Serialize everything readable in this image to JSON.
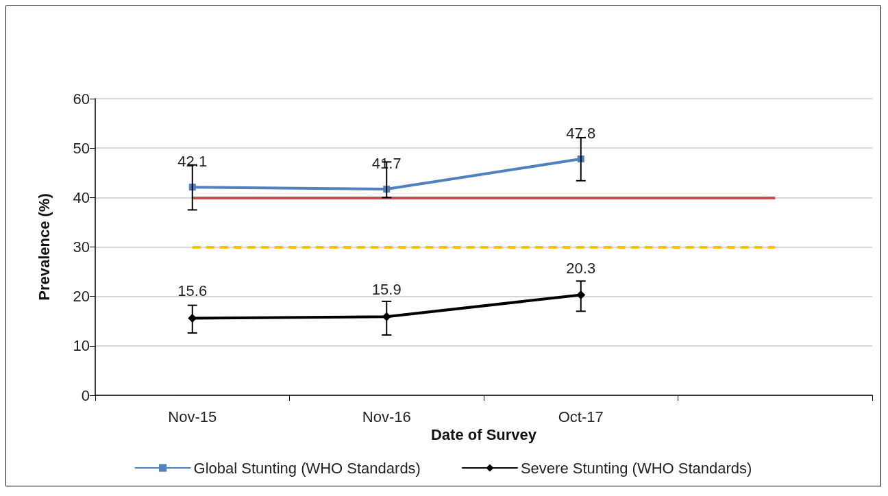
{
  "chart_data": {
    "type": "line",
    "xlabel": "Date of Survey",
    "ylabel": "Prevalence (%)",
    "categories": [
      "Nov-15",
      "Nov-16",
      "Oct-17",
      null
    ],
    "series": [
      {
        "name": "Global Stunting (WHO Standards)",
        "color": "#4f81bd",
        "marker": "square",
        "values": [
          42.1,
          41.7,
          47.8,
          null
        ],
        "errors": [
          [
            37.5,
            46.6
          ],
          [
            40.0,
            47.2
          ],
          [
            43.4,
            52.1
          ],
          null
        ]
      },
      {
        "name": "Severe Stunting (WHO Standards)",
        "color": "#000000",
        "marker": "diamond",
        "values": [
          15.6,
          15.9,
          20.3,
          null
        ],
        "errors": [
          [
            12.6,
            18.2
          ],
          [
            12.2,
            19.0
          ],
          [
            17.0,
            23.1
          ],
          null
        ]
      }
    ],
    "ref_lines": [
      {
        "axis": "y",
        "value": 40,
        "color": "#c0504d",
        "line_style": "solid"
      },
      {
        "axis": "y",
        "value": 30,
        "color": "#ffc000",
        "line_style": "dashed"
      }
    ],
    "ylim": [
      0,
      60
    ],
    "yticks": [
      0,
      10,
      20,
      30,
      40,
      50,
      60
    ],
    "grid": "y",
    "legend": "bottom",
    "data_labels": true,
    "line_style": "solid"
  }
}
